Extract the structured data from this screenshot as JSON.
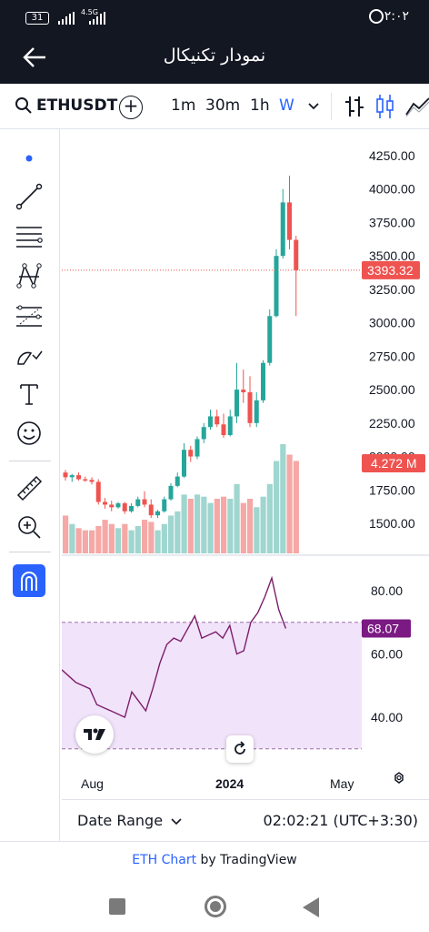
{
  "status_bar": {
    "battery": "31",
    "network": "4.5G",
    "clock": "۲:۰۲"
  },
  "app_bar": {
    "title": "نمودار تکنیکال"
  },
  "toolbar": {
    "symbol": "ETHUSDT",
    "timeframes": [
      "1m",
      "30m",
      "1h",
      "W"
    ],
    "active_timeframe": "W"
  },
  "left_tools": [
    "dot-cursor-icon",
    "trend-line-icon",
    "horizontal-lines-icon",
    "pattern-icon",
    "fib-channel-icon",
    "brush-icon",
    "text-icon",
    "emoji-icon",
    "ruler-icon",
    "zoom-in-icon",
    "magnet-icon"
  ],
  "price_axis": {
    "labels": [
      "4250.00",
      "4000.00",
      "3750.00",
      "3500.00",
      "3250.00",
      "3000.00",
      "2750.00",
      "2500.00",
      "2250.00",
      "2000.00",
      "1750.00",
      "1500.00"
    ],
    "last_price_label": "3393.32",
    "volume_label": "4.272 M"
  },
  "rsi_axis": {
    "labels": [
      "80.00",
      "60.00",
      "40.00"
    ],
    "last_value_label": "68.07"
  },
  "time_axis": {
    "labels": [
      "Aug",
      "2024",
      "May"
    ]
  },
  "bottom_bar": {
    "date_range": "Date Range",
    "time": "02:02:21 (UTC+3:30)"
  },
  "credit": {
    "link": "ETH Chart",
    "text": " by TradingView"
  },
  "colors": {
    "up": "#26a69a",
    "down": "#ef5350",
    "vol_up": "#9fd6cf",
    "vol_down": "#f5a8a6",
    "rsi": "#7b1f6a",
    "rsi_fill": "#f1e3fa",
    "accent": "#2962ff",
    "dark": "#131722"
  },
  "chart_data": {
    "type": "candlestick",
    "candles": [
      {
        "o": 1880,
        "h": 1900,
        "l": 1820,
        "c": 1845,
        "v": 0.9
      },
      {
        "o": 1845,
        "h": 1870,
        "l": 1810,
        "c": 1860,
        "v": 0.7
      },
      {
        "o": 1860,
        "h": 1880,
        "l": 1820,
        "c": 1830,
        "v": 0.6
      },
      {
        "o": 1830,
        "h": 1850,
        "l": 1810,
        "c": 1825,
        "v": 0.55
      },
      {
        "o": 1825,
        "h": 1845,
        "l": 1790,
        "c": 1810,
        "v": 0.55
      },
      {
        "o": 1810,
        "h": 1830,
        "l": 1640,
        "c": 1660,
        "v": 0.65
      },
      {
        "o": 1660,
        "h": 1690,
        "l": 1610,
        "c": 1640,
        "v": 0.8
      },
      {
        "o": 1640,
        "h": 1670,
        "l": 1590,
        "c": 1620,
        "v": 0.7
      },
      {
        "o": 1620,
        "h": 1660,
        "l": 1610,
        "c": 1650,
        "v": 0.6
      },
      {
        "o": 1650,
        "h": 1660,
        "l": 1570,
        "c": 1590,
        "v": 0.7
      },
      {
        "o": 1590,
        "h": 1650,
        "l": 1580,
        "c": 1630,
        "v": 0.55
      },
      {
        "o": 1630,
        "h": 1700,
        "l": 1620,
        "c": 1680,
        "v": 0.65
      },
      {
        "o": 1680,
        "h": 1740,
        "l": 1620,
        "c": 1640,
        "v": 0.8
      },
      {
        "o": 1640,
        "h": 1680,
        "l": 1540,
        "c": 1560,
        "v": 0.75
      },
      {
        "o": 1560,
        "h": 1600,
        "l": 1540,
        "c": 1590,
        "v": 0.55
      },
      {
        "o": 1590,
        "h": 1700,
        "l": 1580,
        "c": 1680,
        "v": 0.7
      },
      {
        "o": 1680,
        "h": 1800,
        "l": 1670,
        "c": 1780,
        "v": 0.9
      },
      {
        "o": 1780,
        "h": 1880,
        "l": 1770,
        "c": 1850,
        "v": 1.0
      },
      {
        "o": 1850,
        "h": 2100,
        "l": 1840,
        "c": 2050,
        "v": 1.4
      },
      {
        "o": 2050,
        "h": 2080,
        "l": 1960,
        "c": 2000,
        "v": 1.3
      },
      {
        "o": 2000,
        "h": 2150,
        "l": 1980,
        "c": 2130,
        "v": 1.4
      },
      {
        "o": 2130,
        "h": 2250,
        "l": 2100,
        "c": 2220,
        "v": 1.35
      },
      {
        "o": 2220,
        "h": 2350,
        "l": 2200,
        "c": 2300,
        "v": 1.2
      },
      {
        "o": 2300,
        "h": 2350,
        "l": 2220,
        "c": 2240,
        "v": 1.3
      },
      {
        "o": 2240,
        "h": 2320,
        "l": 2140,
        "c": 2160,
        "v": 1.35
      },
      {
        "o": 2160,
        "h": 2350,
        "l": 2150,
        "c": 2300,
        "v": 1.3
      },
      {
        "o": 2300,
        "h": 2700,
        "l": 2250,
        "c": 2500,
        "v": 1.65
      },
      {
        "o": 2500,
        "h": 2650,
        "l": 2400,
        "c": 2480,
        "v": 1.2
      },
      {
        "o": 2480,
        "h": 2600,
        "l": 2220,
        "c": 2250,
        "v": 1.3
      },
      {
        "o": 2250,
        "h": 2480,
        "l": 2220,
        "c": 2420,
        "v": 1.1
      },
      {
        "o": 2420,
        "h": 2720,
        "l": 2400,
        "c": 2700,
        "v": 1.35
      },
      {
        "o": 2700,
        "h": 3100,
        "l": 2680,
        "c": 3050,
        "v": 1.65
      },
      {
        "o": 3050,
        "h": 3550,
        "l": 3040,
        "c": 3500,
        "v": 2.2
      },
      {
        "o": 3500,
        "h": 4000,
        "l": 3480,
        "c": 3900,
        "v": 2.6
      },
      {
        "o": 3900,
        "h": 4100,
        "l": 3550,
        "c": 3620,
        "v": 2.35
      },
      {
        "o": 3620,
        "h": 3650,
        "l": 3050,
        "c": 3393.32,
        "v": 2.2
      }
    ],
    "rsi": [
      55,
      53,
      51,
      50,
      49,
      44,
      43,
      42,
      41,
      40,
      48,
      45,
      42,
      49,
      57,
      63,
      65,
      64,
      68,
      72,
      65,
      66,
      67,
      65,
      69,
      60,
      61,
      70,
      73,
      78,
      84,
      74,
      68.07
    ],
    "y_range": [
      1400,
      4350
    ],
    "rsi_range": [
      30,
      90
    ],
    "rsi_band": [
      30,
      70
    ],
    "last_price": 3393.32
  }
}
